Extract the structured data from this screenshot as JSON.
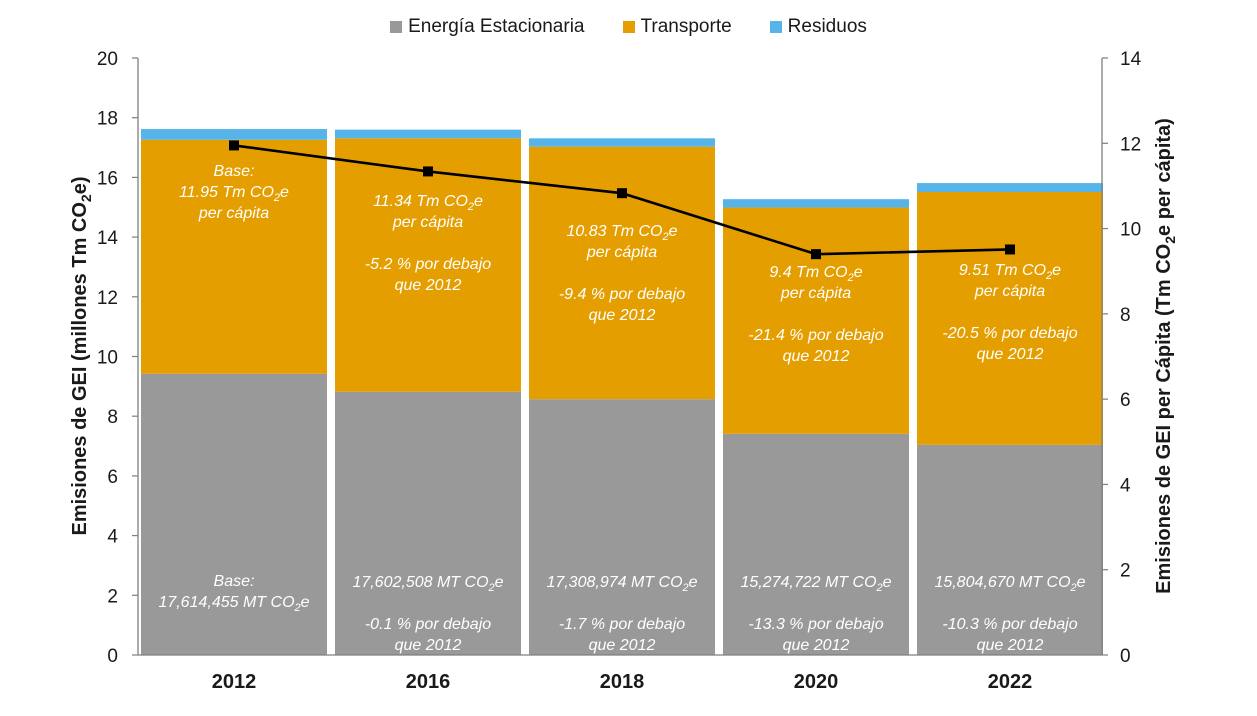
{
  "colors": {
    "energia": "#999999",
    "transporte": "#e49e00",
    "residuos": "#56b4e9",
    "line": "#000000",
    "axis": "#7f7f7f",
    "text": "#1a1a1a",
    "annotation": "#ffffff"
  },
  "legend": [
    {
      "label": "Energía Estacionaria",
      "color_key": "energia"
    },
    {
      "label": "Transporte",
      "color_key": "transporte"
    },
    {
      "label": "Residuos",
      "color_key": "residuos"
    }
  ],
  "chart_data": {
    "type": "bar",
    "stacked": true,
    "categories": [
      "2012",
      "2016",
      "2018",
      "2020",
      "2022"
    ],
    "series": [
      {
        "name": "Energía Estacionaria",
        "values": [
          9.42,
          8.82,
          8.57,
          7.41,
          7.04
        ]
      },
      {
        "name": "Transporte",
        "values": [
          7.84,
          8.49,
          8.46,
          7.58,
          8.47
        ]
      },
      {
        "name": "Residuos",
        "values": [
          0.36,
          0.29,
          0.28,
          0.28,
          0.3
        ]
      }
    ],
    "line_series": {
      "axis": "right",
      "values": [
        11.95,
        11.34,
        10.83,
        9.4,
        9.51
      ]
    },
    "ylabel_left_main": "Emisiones de GEI (millones Tm CO",
    "ylabel_left_sub": "2",
    "ylabel_left_end": "e)",
    "ylabel_right_main": "Emisiones de GEI per Cápita (Tm CO",
    "ylabel_right_sub": "2",
    "ylabel_right_end": "e per cápita)",
    "ylim_left": [
      0,
      20
    ],
    "yticks_left": [
      0,
      2,
      4,
      6,
      8,
      10,
      12,
      14,
      16,
      18,
      20
    ],
    "ylim_right": [
      0,
      14
    ],
    "yticks_right": [
      0,
      2,
      4,
      6,
      8,
      10,
      12,
      14
    ],
    "legend_position": "top-center",
    "grid": false,
    "annotations_upper": [
      {
        "lines": [
          {
            "t": "Base:"
          },
          {
            "t": "11.95 Tm CO",
            "sub": "2",
            "tail": "e"
          },
          {
            "t": "per cápita"
          }
        ]
      },
      {
        "lines": [
          {
            "t": "11.34 Tm CO",
            "sub": "2",
            "tail": "e"
          },
          {
            "t": "per cápita"
          },
          {
            "t": ""
          },
          {
            "t": "-5.2 % por debajo"
          },
          {
            "t": "que 2012"
          }
        ]
      },
      {
        "lines": [
          {
            "t": "10.83 Tm CO",
            "sub": "2",
            "tail": "e"
          },
          {
            "t": "per cápita"
          },
          {
            "t": ""
          },
          {
            "t": "-9.4 % por debajo"
          },
          {
            "t": "que 2012"
          }
        ]
      },
      {
        "lines": [
          {
            "t": "9.4 Tm CO",
            "sub": "2",
            "tail": "e"
          },
          {
            "t": "per cápita"
          },
          {
            "t": ""
          },
          {
            "t": "-21.4 % por debajo"
          },
          {
            "t": "que 2012"
          }
        ]
      },
      {
        "lines": [
          {
            "t": "9.51 Tm CO",
            "sub": "2",
            "tail": "e"
          },
          {
            "t": "per cápita"
          },
          {
            "t": ""
          },
          {
            "t": "-20.5 % por debajo"
          },
          {
            "t": "que 2012"
          }
        ]
      }
    ],
    "annotations_lower": [
      {
        "lines": [
          {
            "t": "Base:"
          },
          {
            "t": "17,614,455 MT CO",
            "sub": "2",
            "tail": "e"
          }
        ]
      },
      {
        "lines": [
          {
            "t": "17,602,508 MT CO",
            "sub": "2",
            "tail": "e"
          },
          {
            "t": ""
          },
          {
            "t": "-0.1 % por debajo"
          },
          {
            "t": "que 2012"
          }
        ]
      },
      {
        "lines": [
          {
            "t": "17,308,974 MT CO",
            "sub": "2",
            "tail": "e"
          },
          {
            "t": ""
          },
          {
            "t": "-1.7 % por debajo"
          },
          {
            "t": "que 2012"
          }
        ]
      },
      {
        "lines": [
          {
            "t": "15,274,722 MT CO",
            "sub": "2",
            "tail": "e"
          },
          {
            "t": ""
          },
          {
            "t": "-13.3 % por debajo"
          },
          {
            "t": "que 2012"
          }
        ]
      },
      {
        "lines": [
          {
            "t": "15,804,670 MT CO",
            "sub": "2",
            "tail": "e"
          },
          {
            "t": ""
          },
          {
            "t": "-10.3 % por debajo"
          },
          {
            "t": "que 2012"
          }
        ]
      }
    ]
  }
}
